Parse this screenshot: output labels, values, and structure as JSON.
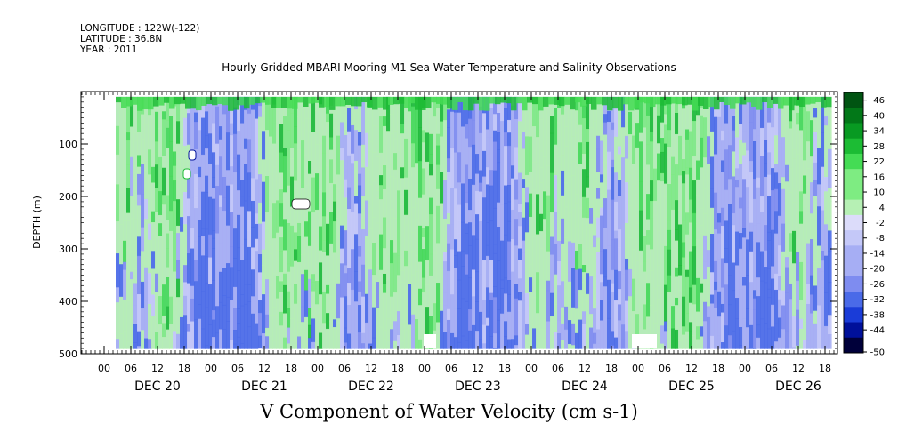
{
  "header": {
    "longitude": "LONGITUDE : 122W(-122)",
    "latitude": "LATITUDE : 36.8N",
    "year": "YEAR : 2011"
  },
  "chart_data": {
    "type": "heatmap",
    "title": "Hourly Gridded MBARI Mooring M1 Sea Water Temperature and Salinity Observations",
    "xlabel": "V Component of Water Velocity (cm s-1)",
    "ylabel": "DEPTH (m)",
    "ylim": [
      500,
      0
    ],
    "yticks": [
      100,
      200,
      300,
      400,
      500
    ],
    "x_hour_ticks": [
      "00",
      "06",
      "12",
      "18",
      "00",
      "06",
      "12",
      "18",
      "00",
      "06",
      "12",
      "18",
      "00",
      "06",
      "12",
      "18",
      "00",
      "06",
      "12",
      "18",
      "00",
      "06",
      "12",
      "18",
      "00",
      "06",
      "12",
      "18"
    ],
    "day_labels": [
      "DEC 20",
      "DEC 21",
      "DEC 22",
      "DEC 23",
      "DEC 24",
      "DEC 25",
      "DEC 26"
    ],
    "colorbar": {
      "levels": [
        46,
        40,
        34,
        28,
        22,
        16,
        10,
        4,
        -2,
        -8,
        -14,
        -20,
        -26,
        -32,
        -38,
        -44,
        -50
      ],
      "range": [
        -50,
        52
      ],
      "colors_low_to_high": [
        "#00003a",
        "#00109a",
        "#1a3cd8",
        "#4a6ae8",
        "#7e8cf0",
        "#a6aef4",
        "#c4c8f8",
        "#dcdcfa",
        "#b6f0b4",
        "#7eec82",
        "#44dc54",
        "#1cbc34",
        "#089a22",
        "#027818",
        "#005412"
      ]
    },
    "data_extent": {
      "x_start_hour_offset": 80,
      "x_end_hour_offset": 164,
      "y_top": 10,
      "y_bottom": 490
    }
  }
}
